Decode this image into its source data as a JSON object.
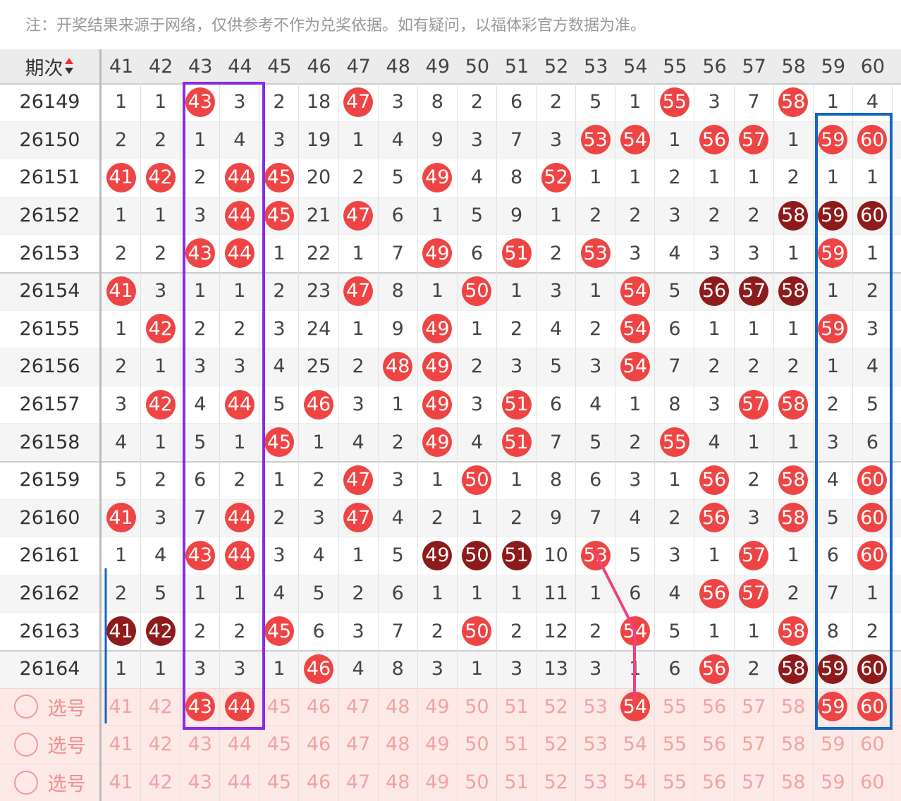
{
  "note": "注：开奖结果来源于网络，仅供参考不作为兑奖依据。如有疑问，以福体彩官方数据为准。",
  "header": {
    "period": "期次",
    "columns": [
      "41",
      "42",
      "43",
      "44",
      "45",
      "46",
      "47",
      "48",
      "49",
      "50",
      "51",
      "52",
      "53",
      "54",
      "55",
      "56",
      "57",
      "58",
      "59",
      "60"
    ]
  },
  "rows": [
    {
      "period": "26149",
      "cells": [
        "1",
        "1",
        {
          "text": "43",
          "ball": "red"
        },
        "3",
        "2",
        "18",
        {
          "text": "47",
          "ball": "red"
        },
        "3",
        "8",
        "2",
        "6",
        "2",
        "5",
        "1",
        {
          "text": "55",
          "ball": "red"
        },
        "3",
        "7",
        {
          "text": "58",
          "ball": "red"
        },
        "1",
        "4"
      ]
    },
    {
      "period": "26150",
      "cells": [
        "2",
        "2",
        "1",
        "4",
        "3",
        "19",
        "1",
        "4",
        "9",
        "3",
        "7",
        "3",
        {
          "text": "53",
          "ball": "red"
        },
        {
          "text": "54",
          "ball": "red"
        },
        "1",
        {
          "text": "56",
          "ball": "red"
        },
        {
          "text": "57",
          "ball": "red"
        },
        "1",
        {
          "text": "59",
          "ball": "red"
        },
        {
          "text": "60",
          "ball": "red"
        }
      ]
    },
    {
      "period": "26151",
      "cells": [
        {
          "text": "41",
          "ball": "red"
        },
        {
          "text": "42",
          "ball": "red"
        },
        "2",
        {
          "text": "44",
          "ball": "red"
        },
        {
          "text": "45",
          "ball": "red"
        },
        "20",
        "2",
        "5",
        {
          "text": "49",
          "ball": "red"
        },
        "4",
        "8",
        {
          "text": "52",
          "ball": "red"
        },
        "1",
        "1",
        "2",
        "1",
        "1",
        "2",
        "1",
        "1"
      ]
    },
    {
      "period": "26152",
      "cells": [
        "1",
        "1",
        "3",
        {
          "text": "44",
          "ball": "red"
        },
        {
          "text": "45",
          "ball": "red"
        },
        "21",
        {
          "text": "47",
          "ball": "red"
        },
        "6",
        "1",
        "5",
        "9",
        "1",
        "2",
        "2",
        "3",
        "2",
        "2",
        {
          "text": "58",
          "ball": "dark"
        },
        {
          "text": "59",
          "ball": "dark"
        },
        {
          "text": "60",
          "ball": "dark"
        }
      ]
    },
    {
      "period": "26153",
      "cells": [
        "2",
        "2",
        {
          "text": "43",
          "ball": "red"
        },
        {
          "text": "44",
          "ball": "red"
        },
        "1",
        "22",
        "1",
        "7",
        {
          "text": "49",
          "ball": "red"
        },
        "6",
        {
          "text": "51",
          "ball": "red"
        },
        "2",
        {
          "text": "53",
          "ball": "red"
        },
        "3",
        "4",
        "3",
        "3",
        "1",
        {
          "text": "59",
          "ball": "red"
        },
        "1"
      ]
    },
    {
      "period": "26154",
      "cells": [
        {
          "text": "41",
          "ball": "red"
        },
        "3",
        "1",
        "1",
        "2",
        "23",
        {
          "text": "47",
          "ball": "red"
        },
        "8",
        "1",
        {
          "text": "50",
          "ball": "red"
        },
        "1",
        "3",
        "1",
        {
          "text": "54",
          "ball": "red"
        },
        "5",
        {
          "text": "56",
          "ball": "dark"
        },
        {
          "text": "57",
          "ball": "dark"
        },
        {
          "text": "58",
          "ball": "dark"
        },
        "1",
        "2"
      ]
    },
    {
      "period": "26155",
      "cells": [
        "1",
        {
          "text": "42",
          "ball": "red"
        },
        "2",
        "2",
        "3",
        "24",
        "1",
        "9",
        {
          "text": "49",
          "ball": "red"
        },
        "1",
        "2",
        "4",
        "2",
        {
          "text": "54",
          "ball": "red"
        },
        "6",
        "1",
        "1",
        "1",
        {
          "text": "59",
          "ball": "red"
        },
        "3"
      ]
    },
    {
      "period": "26156",
      "cells": [
        "2",
        "1",
        "3",
        "3",
        "4",
        "25",
        "2",
        {
          "text": "48",
          "ball": "red"
        },
        {
          "text": "49",
          "ball": "red"
        },
        "2",
        "3",
        "5",
        "3",
        {
          "text": "54",
          "ball": "red"
        },
        "7",
        "2",
        "2",
        "2",
        "1",
        "4"
      ]
    },
    {
      "period": "26157",
      "cells": [
        "3",
        {
          "text": "42",
          "ball": "red"
        },
        "4",
        {
          "text": "44",
          "ball": "red"
        },
        "5",
        {
          "text": "46",
          "ball": "red"
        },
        "3",
        "1",
        {
          "text": "49",
          "ball": "red"
        },
        "3",
        {
          "text": "51",
          "ball": "red"
        },
        "6",
        "4",
        "1",
        "8",
        "3",
        {
          "text": "57",
          "ball": "red"
        },
        {
          "text": "58",
          "ball": "red"
        },
        "2",
        "5"
      ]
    },
    {
      "period": "26158",
      "cells": [
        "4",
        "1",
        "5",
        "1",
        {
          "text": "45",
          "ball": "red"
        },
        "1",
        "4",
        "2",
        {
          "text": "49",
          "ball": "red"
        },
        "4",
        {
          "text": "51",
          "ball": "red"
        },
        "7",
        "5",
        "2",
        {
          "text": "55",
          "ball": "red"
        },
        "4",
        "1",
        "1",
        "3",
        "6"
      ]
    },
    {
      "period": "26159",
      "cells": [
        "5",
        "2",
        "6",
        "2",
        "1",
        "2",
        {
          "text": "47",
          "ball": "red"
        },
        "3",
        "1",
        {
          "text": "50",
          "ball": "red"
        },
        "1",
        "8",
        "6",
        "3",
        "1",
        {
          "text": "56",
          "ball": "red"
        },
        "2",
        {
          "text": "58",
          "ball": "red"
        },
        "4",
        {
          "text": "60",
          "ball": "red"
        }
      ]
    },
    {
      "period": "26160",
      "cells": [
        {
          "text": "41",
          "ball": "red"
        },
        "3",
        "7",
        {
          "text": "44",
          "ball": "red"
        },
        "2",
        "3",
        {
          "text": "47",
          "ball": "red"
        },
        "4",
        "2",
        "1",
        "2",
        "9",
        "7",
        "4",
        "2",
        {
          "text": "56",
          "ball": "red"
        },
        "3",
        {
          "text": "58",
          "ball": "red"
        },
        "5",
        {
          "text": "60",
          "ball": "red"
        }
      ]
    },
    {
      "period": "26161",
      "cells": [
        "1",
        "4",
        {
          "text": "43",
          "ball": "red"
        },
        {
          "text": "44",
          "ball": "red"
        },
        "3",
        "4",
        "1",
        "5",
        {
          "text": "49",
          "ball": "dark"
        },
        {
          "text": "50",
          "ball": "dark"
        },
        {
          "text": "51",
          "ball": "dark"
        },
        "10",
        {
          "text": "53",
          "ball": "red"
        },
        "5",
        "3",
        "1",
        {
          "text": "57",
          "ball": "red"
        },
        "1",
        "6",
        {
          "text": "60",
          "ball": "red"
        }
      ]
    },
    {
      "period": "26162",
      "cells": [
        "2",
        "5",
        "1",
        "1",
        "4",
        "5",
        "2",
        "6",
        "1",
        "1",
        "1",
        "11",
        "1",
        "6",
        "4",
        {
          "text": "56",
          "ball": "red"
        },
        {
          "text": "57",
          "ball": "red"
        },
        "2",
        "7",
        "1"
      ]
    },
    {
      "period": "26163",
      "cells": [
        {
          "text": "41",
          "ball": "dark"
        },
        {
          "text": "42",
          "ball": "dark"
        },
        "2",
        "2",
        {
          "text": "45",
          "ball": "red"
        },
        "6",
        "3",
        "7",
        "2",
        {
          "text": "50",
          "ball": "red"
        },
        "2",
        "12",
        "2",
        {
          "text": "54",
          "ball": "red"
        },
        "5",
        "1",
        "1",
        {
          "text": "58",
          "ball": "red"
        },
        "8",
        "2"
      ]
    },
    {
      "period": "26164",
      "cells": [
        "1",
        "1",
        "3",
        "3",
        "1",
        {
          "text": "46",
          "ball": "red"
        },
        "4",
        "8",
        "3",
        "1",
        "3",
        "13",
        "3",
        "1",
        "6",
        {
          "text": "56",
          "ball": "red"
        },
        "2",
        {
          "text": "58",
          "ball": "dark"
        },
        {
          "text": "59",
          "ball": "dark"
        },
        {
          "text": "60",
          "ball": "dark"
        }
      ]
    }
  ],
  "select_rows": [
    {
      "label": "选号",
      "cells": [
        "41",
        "42",
        {
          "text": "43",
          "ball": "red"
        },
        {
          "text": "44",
          "ball": "red"
        },
        "45",
        "46",
        "47",
        "48",
        "49",
        "50",
        "51",
        "52",
        "53",
        {
          "text": "54",
          "ball": "red"
        },
        "55",
        "56",
        "57",
        "58",
        {
          "text": "59",
          "ball": "red"
        },
        {
          "text": "60",
          "ball": "red"
        }
      ]
    },
    {
      "label": "选号",
      "cells": [
        "41",
        "42",
        "43",
        "44",
        "45",
        "46",
        "47",
        "48",
        "49",
        "50",
        "51",
        "52",
        "53",
        "54",
        "55",
        "56",
        "57",
        "58",
        "59",
        "60"
      ]
    },
    {
      "label": "选号",
      "cells": [
        "41",
        "42",
        "43",
        "44",
        "45",
        "46",
        "47",
        "48",
        "49",
        "50",
        "51",
        "52",
        "53",
        "54",
        "55",
        "56",
        "57",
        "58",
        "59",
        "60"
      ]
    }
  ]
}
